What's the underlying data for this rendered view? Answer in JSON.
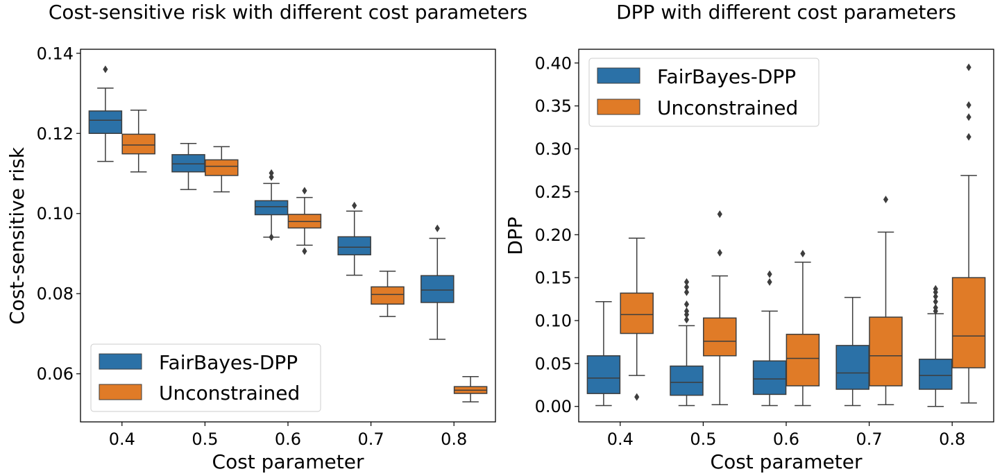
{
  "chart_data": [
    {
      "type": "box",
      "title": "Cost-sensitive risk with different cost parameters",
      "xlabel": "Cost parameter",
      "ylabel": "Cost-sensitive risk",
      "categories": [
        "0.4",
        "0.5",
        "0.6",
        "0.7",
        "0.8"
      ],
      "ylim": [
        0.048,
        0.141
      ],
      "yticks": [
        0.06,
        0.08,
        0.1,
        0.12,
        0.14
      ],
      "ytick_labels": [
        "0.06",
        "0.08",
        "0.10",
        "0.12",
        "0.14"
      ],
      "legend": {
        "position": "lower-left",
        "entries": [
          "FairBayes-DPP",
          "Unconstrained"
        ]
      },
      "series": [
        {
          "name": "FairBayes-DPP",
          "color": "#2b71a7",
          "boxes": [
            {
              "low": 0.113,
              "q1": 0.12,
              "median": 0.1233,
              "q3": 0.1256,
              "high": 0.1313,
              "outliers": [
                0.136
              ]
            },
            {
              "low": 0.106,
              "q1": 0.1104,
              "median": 0.1124,
              "q3": 0.1147,
              "high": 0.1175,
              "outliers": []
            },
            {
              "low": 0.0941,
              "q1": 0.0997,
              "median": 0.1017,
              "q3": 0.1032,
              "high": 0.1075,
              "outliers": [
                0.1091,
                0.1101,
                0.0941
              ]
            },
            {
              "low": 0.0846,
              "q1": 0.0897,
              "median": 0.0916,
              "q3": 0.0942,
              "high": 0.1006,
              "outliers": [
                0.102
              ]
            },
            {
              "low": 0.0686,
              "q1": 0.0778,
              "median": 0.0809,
              "q3": 0.0845,
              "high": 0.0938,
              "outliers": [
                0.0963
              ]
            }
          ]
        },
        {
          "name": "Unconstrained",
          "color": "#e07b27",
          "boxes": [
            {
              "low": 0.1104,
              "q1": 0.1149,
              "median": 0.1171,
              "q3": 0.1198,
              "high": 0.1258,
              "outliers": []
            },
            {
              "low": 0.1054,
              "q1": 0.1095,
              "median": 0.1118,
              "q3": 0.1134,
              "high": 0.1167,
              "outliers": []
            },
            {
              "low": 0.0921,
              "q1": 0.0964,
              "median": 0.098,
              "q3": 0.0998,
              "high": 0.104,
              "outliers": [
                0.1057,
                0.0906
              ]
            },
            {
              "low": 0.0743,
              "q1": 0.0774,
              "median": 0.0798,
              "q3": 0.0817,
              "high": 0.0856,
              "outliers": []
            },
            {
              "low": 0.053,
              "q1": 0.0551,
              "median": 0.0559,
              "q3": 0.0568,
              "high": 0.0593,
              "outliers": []
            }
          ]
        }
      ]
    },
    {
      "type": "box",
      "title": "DPP with different cost parameters",
      "xlabel": "Cost parameter",
      "ylabel": "DPP",
      "categories": [
        "0.4",
        "0.5",
        "0.6",
        "0.7",
        "0.8"
      ],
      "ylim": [
        -0.018,
        0.416
      ],
      "yticks": [
        0.0,
        0.05,
        0.1,
        0.15,
        0.2,
        0.25,
        0.3,
        0.35,
        0.4
      ],
      "ytick_labels": [
        "0.00",
        "0.05",
        "0.10",
        "0.15",
        "0.20",
        "0.25",
        "0.30",
        "0.35",
        "0.40"
      ],
      "legend": {
        "position": "upper-left",
        "entries": [
          "FairBayes-DPP",
          "Unconstrained"
        ]
      },
      "series": [
        {
          "name": "FairBayes-DPP",
          "color": "#2b71a7",
          "boxes": [
            {
              "low": 0.001,
              "q1": 0.015,
              "median": 0.033,
              "q3": 0.059,
              "high": 0.122,
              "outliers": []
            },
            {
              "low": 0.001,
              "q1": 0.013,
              "median": 0.028,
              "q3": 0.047,
              "high": 0.094,
              "outliers": [
                0.101,
                0.107,
                0.111,
                0.119,
                0.133,
                0.139,
                0.145
              ]
            },
            {
              "low": 0.001,
              "q1": 0.014,
              "median": 0.032,
              "q3": 0.053,
              "high": 0.111,
              "outliers": [
                0.145,
                0.154
              ]
            },
            {
              "low": 0.001,
              "q1": 0.02,
              "median": 0.039,
              "q3": 0.071,
              "high": 0.127,
              "outliers": []
            },
            {
              "low": 0.0,
              "q1": 0.02,
              "median": 0.036,
              "q3": 0.055,
              "high": 0.108,
              "outliers": [
                0.111,
                0.115,
                0.122,
                0.128,
                0.133,
                0.137
              ]
            }
          ]
        },
        {
          "name": "Unconstrained",
          "color": "#e07b27",
          "boxes": [
            {
              "low": 0.036,
              "q1": 0.085,
              "median": 0.107,
              "q3": 0.132,
              "high": 0.196,
              "outliers": [
                0.011
              ]
            },
            {
              "low": 0.002,
              "q1": 0.059,
              "median": 0.076,
              "q3": 0.103,
              "high": 0.152,
              "outliers": [
                0.179,
                0.224
              ]
            },
            {
              "low": 0.001,
              "q1": 0.024,
              "median": 0.056,
              "q3": 0.084,
              "high": 0.168,
              "outliers": [
                0.178
              ]
            },
            {
              "low": 0.002,
              "q1": 0.024,
              "median": 0.059,
              "q3": 0.104,
              "high": 0.203,
              "outliers": [
                0.241
              ]
            },
            {
              "low": 0.004,
              "q1": 0.045,
              "median": 0.082,
              "q3": 0.15,
              "high": 0.269,
              "outliers": [
                0.314,
                0.337,
                0.351,
                0.395
              ]
            }
          ]
        }
      ]
    }
  ]
}
